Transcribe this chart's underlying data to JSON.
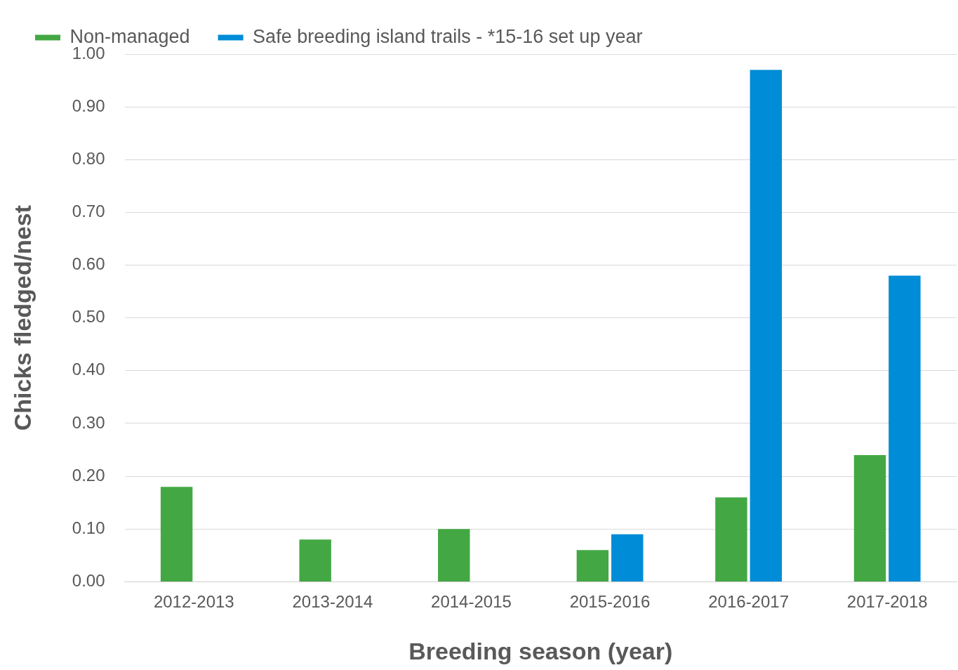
{
  "chart_data": {
    "type": "bar",
    "xlabel": "Breeding season (year)",
    "ylabel": "Chicks fledged/nest",
    "categories": [
      "2012-2013",
      "2013-2014",
      "2014-2015",
      "2015-2016",
      "2016-2017",
      "2017-2018"
    ],
    "series": [
      {
        "name": "Non-managed",
        "color": "#43a843",
        "values": [
          0.18,
          0.08,
          0.1,
          0.06,
          0.16,
          0.24
        ]
      },
      {
        "name": "Safe breeding island trails - *15-16 set up year",
        "color": "#008cd6",
        "values": [
          null,
          null,
          null,
          0.09,
          0.97,
          0.58
        ]
      }
    ],
    "ylim": [
      0,
      1
    ],
    "yticks": [
      {
        "value": 0,
        "label": "0.00"
      },
      {
        "value": 0.1,
        "label": "0.10"
      },
      {
        "value": 0.2,
        "label": "0.20"
      },
      {
        "value": 0.3,
        "label": "0.30"
      },
      {
        "value": 0.4,
        "label": "0.40"
      },
      {
        "value": 0.5,
        "label": "0.50"
      },
      {
        "value": 0.6,
        "label": "0.60"
      },
      {
        "value": 0.7,
        "label": "0.70"
      },
      {
        "value": 0.8,
        "label": "0.80"
      },
      {
        "value": 0.9,
        "label": "0.90"
      },
      {
        "value": 1,
        "label": "1.00"
      }
    ],
    "grid": "y",
    "legend": "top left"
  }
}
